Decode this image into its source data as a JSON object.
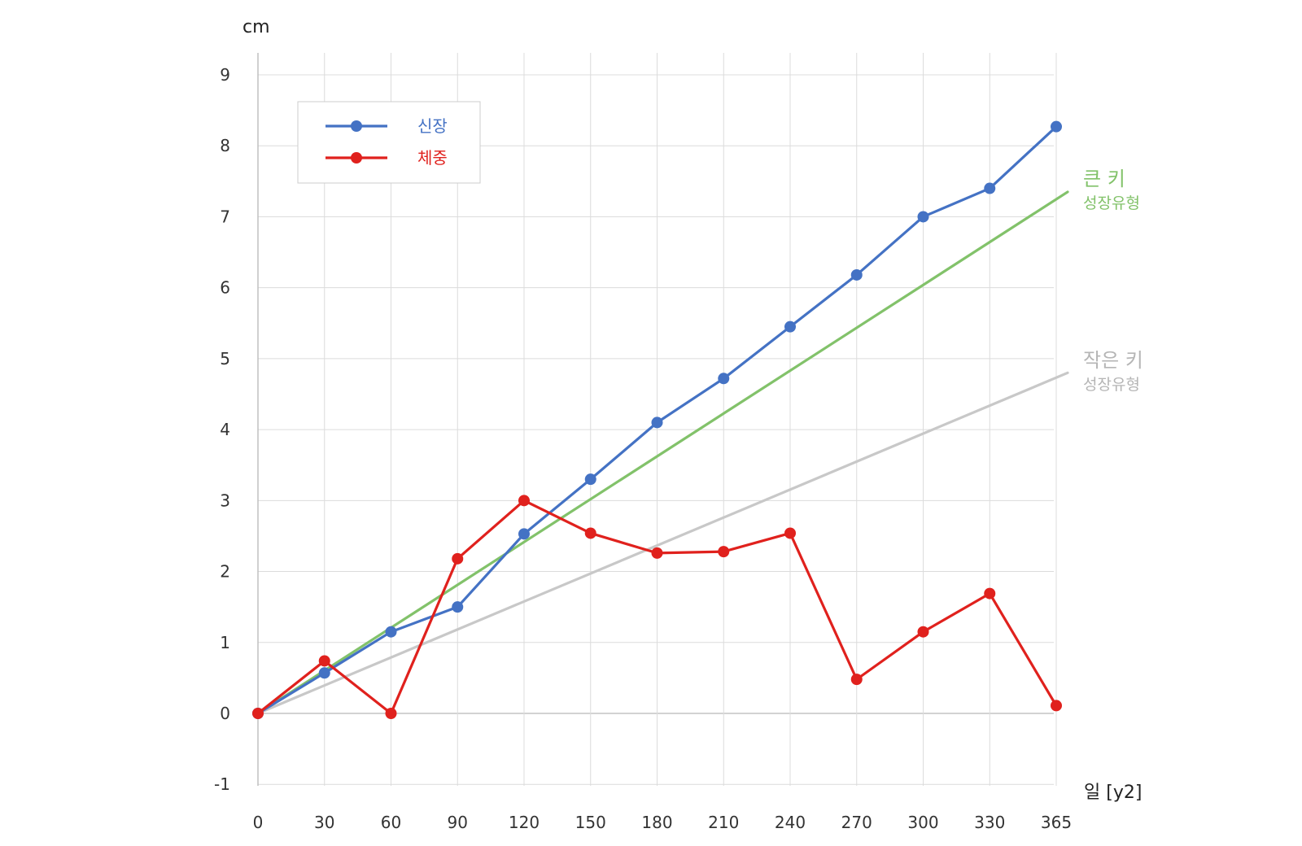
{
  "chart_data": {
    "type": "line",
    "ylabel": "cm",
    "xlabel": "일 [y2]",
    "ylim": [
      -1,
      9
    ],
    "yticks": [
      -1,
      0,
      1,
      2,
      3,
      4,
      5,
      6,
      7,
      8,
      9
    ],
    "x": [
      0,
      30,
      60,
      90,
      120,
      150,
      180,
      210,
      240,
      270,
      300,
      330,
      365
    ],
    "xtick_labels": [
      "0",
      "30",
      "60",
      "90",
      "120",
      "150",
      "180",
      "210",
      "240",
      "270",
      "300",
      "330",
      "365"
    ],
    "grid": true,
    "legend_position": "top-left",
    "series": [
      {
        "name": "신장",
        "color": "#4472c4",
        "values": [
          0,
          0.57,
          1.15,
          1.5,
          2.53,
          3.3,
          4.1,
          4.72,
          5.45,
          6.18,
          7.0,
          7.4,
          8.27
        ]
      },
      {
        "name": "체중",
        "color": "#e0211d",
        "values": [
          0,
          0.74,
          0,
          2.18,
          3.0,
          2.54,
          2.26,
          2.28,
          2.54,
          0.48,
          1.15,
          1.69,
          0.11
        ]
      }
    ],
    "reference_lines": [
      {
        "label": "큰 키",
        "sublabel": "성장유형",
        "color": "#82c26a",
        "from": [
          0,
          0
        ],
        "to": [
          365,
          7.35
        ]
      },
      {
        "label": "작은 키",
        "sublabel": "성장유형",
        "color": "#c8c8c8",
        "label_color": "#b5b5b5",
        "from": [
          0,
          0
        ],
        "to": [
          365,
          4.8
        ]
      }
    ]
  }
}
